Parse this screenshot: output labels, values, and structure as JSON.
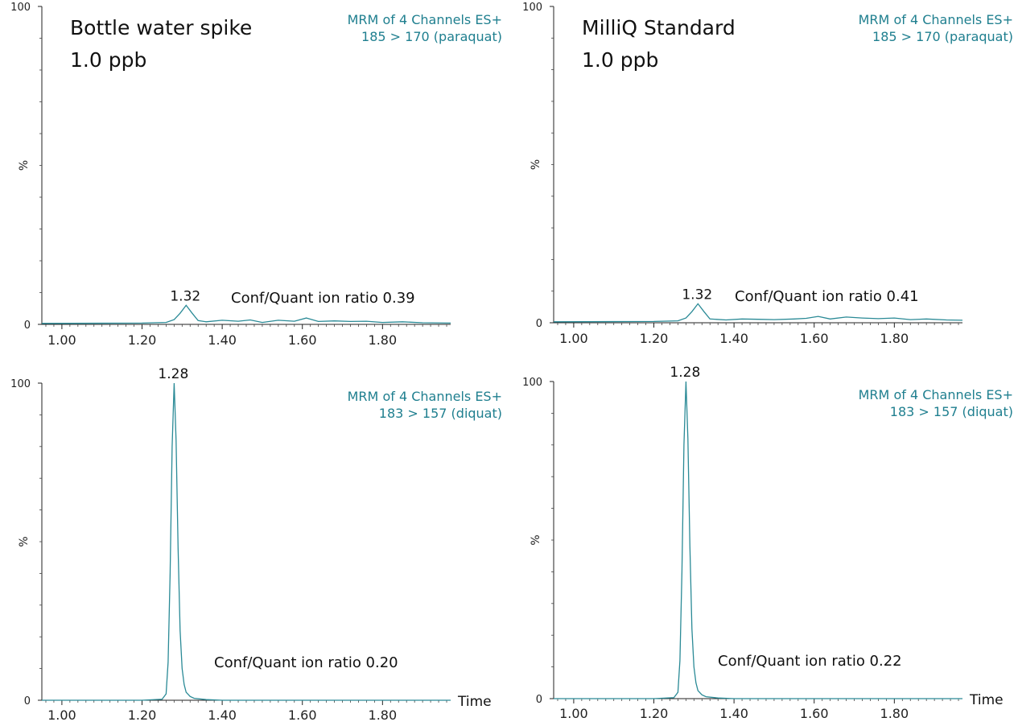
{
  "colors": {
    "trace": "#2a8a96",
    "info_text": "#1f7f8f",
    "axis": "#222222"
  },
  "chart_data": [
    {
      "type": "line",
      "title_lines": [
        "Bottle water spike",
        "1.0 ppb"
      ],
      "channel_lines": [
        "MRM of 4 Channels ES+",
        "185 > 170 (paraquat)"
      ],
      "ylabel": "%",
      "ylim": [
        0,
        100
      ],
      "y_tick_labels": [
        "100",
        "0"
      ],
      "xlim": [
        0.95,
        1.97
      ],
      "x_tick_labels": [
        "1.00",
        "1.20",
        "1.40",
        "1.60",
        "1.80"
      ],
      "x_ticks": [
        1.0,
        1.2,
        1.4,
        1.6,
        1.8
      ],
      "xlabel": "",
      "peak_label": "1.32",
      "peak_x": 1.31,
      "ratio_text": "Conf/Quant ion ratio 0.39",
      "series": [
        {
          "x": [
            0.95,
            1.2,
            1.26,
            1.28,
            1.295,
            1.31,
            1.325,
            1.34,
            1.36,
            1.4,
            1.44,
            1.47,
            1.5,
            1.54,
            1.58,
            1.61,
            1.64,
            1.68,
            1.72,
            1.76,
            1.8,
            1.85,
            1.9,
            1.97
          ],
          "y": [
            0.3,
            0.4,
            0.6,
            1.5,
            3.5,
            6.0,
            3.5,
            1.2,
            0.8,
            1.3,
            1.0,
            1.4,
            0.6,
            1.3,
            1.0,
            2.0,
            0.9,
            1.1,
            0.9,
            1.0,
            0.6,
            0.8,
            0.5,
            0.4
          ]
        }
      ]
    },
    {
      "type": "line",
      "title_lines": [
        "MilliQ Standard",
        "1.0 ppb"
      ],
      "channel_lines": [
        "MRM of 4 Channels ES+",
        "185 > 170 (paraquat)"
      ],
      "ylabel": "%",
      "ylim": [
        0,
        100
      ],
      "y_tick_labels": [
        "100",
        "0"
      ],
      "xlim": [
        0.95,
        1.97
      ],
      "x_tick_labels": [
        "1.00",
        "1.20",
        "1.40",
        "1.60",
        "1.80"
      ],
      "x_ticks": [
        1.0,
        1.2,
        1.4,
        1.6,
        1.8
      ],
      "xlabel": "",
      "peak_label": "1.32",
      "peak_x": 1.31,
      "ratio_text": "Conf/Quant ion ratio 0.41",
      "series": [
        {
          "x": [
            0.95,
            1.2,
            1.26,
            1.28,
            1.295,
            1.31,
            1.325,
            1.34,
            1.38,
            1.42,
            1.46,
            1.5,
            1.55,
            1.58,
            1.61,
            1.64,
            1.68,
            1.72,
            1.76,
            1.8,
            1.84,
            1.88,
            1.93,
            1.97
          ],
          "y": [
            0.3,
            0.4,
            0.6,
            1.5,
            3.5,
            6.0,
            3.5,
            1.2,
            0.9,
            1.2,
            1.1,
            1.0,
            1.2,
            1.4,
            2.0,
            1.2,
            1.8,
            1.5,
            1.3,
            1.5,
            1.0,
            1.2,
            0.9,
            0.8
          ]
        }
      ]
    },
    {
      "type": "line",
      "title_lines": [],
      "channel_lines": [
        "MRM of 4 Channels ES+",
        "183 > 157 (diquat)"
      ],
      "ylabel": "%",
      "ylim": [
        0,
        100
      ],
      "y_tick_labels": [
        "100",
        "0"
      ],
      "xlim": [
        0.95,
        1.97
      ],
      "x_tick_labels": [
        "1.00",
        "1.20",
        "1.40",
        "1.60",
        "1.80"
      ],
      "x_ticks": [
        1.0,
        1.2,
        1.4,
        1.6,
        1.8
      ],
      "xlabel": "Time",
      "peak_label": "1.28",
      "peak_x": 1.28,
      "ratio_text": "Conf/Quant ion ratio 0.20",
      "series": [
        {
          "x": [
            0.95,
            1.2,
            1.25,
            1.26,
            1.265,
            1.27,
            1.275,
            1.28,
            1.285,
            1.29,
            1.295,
            1.3,
            1.305,
            1.31,
            1.32,
            1.33,
            1.36,
            1.4,
            1.6,
            1.97
          ],
          "y": [
            0,
            0,
            0.3,
            2,
            12,
            40,
            80,
            100,
            82,
            48,
            22,
            10,
            5,
            2.5,
            1.2,
            0.6,
            0.2,
            0,
            0,
            0
          ]
        }
      ]
    },
    {
      "type": "line",
      "title_lines": [],
      "channel_lines": [
        "MRM of 4 Channels ES+",
        "183 > 157 (diquat)"
      ],
      "ylabel": "%",
      "ylim": [
        0,
        100
      ],
      "y_tick_labels": [
        "100",
        "0"
      ],
      "xlim": [
        0.95,
        1.97
      ],
      "x_tick_labels": [
        "1.00",
        "1.20",
        "1.40",
        "1.60",
        "1.80"
      ],
      "x_ticks": [
        1.0,
        1.2,
        1.4,
        1.6,
        1.8
      ],
      "xlabel": "Time",
      "peak_label": "1.28",
      "peak_x": 1.28,
      "ratio_text": "Conf/Quant ion ratio 0.22",
      "series": [
        {
          "x": [
            0.95,
            1.2,
            1.25,
            1.26,
            1.265,
            1.27,
            1.275,
            1.28,
            1.285,
            1.29,
            1.295,
            1.3,
            1.305,
            1.31,
            1.32,
            1.33,
            1.36,
            1.4,
            1.6,
            1.97
          ],
          "y": [
            0,
            0,
            0.3,
            2,
            12,
            40,
            80,
            100,
            82,
            48,
            22,
            10,
            5,
            2.5,
            1.2,
            0.6,
            0.2,
            0,
            0,
            0
          ]
        }
      ]
    }
  ]
}
